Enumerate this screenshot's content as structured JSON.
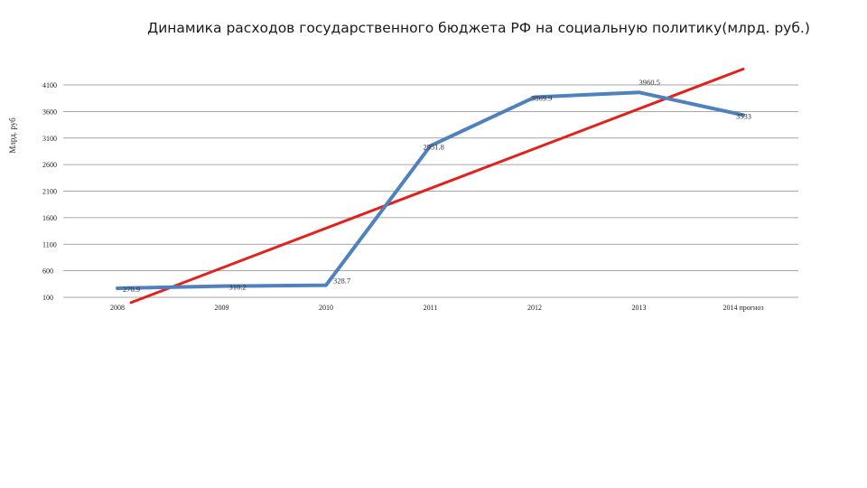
{
  "chart_data": {
    "type": "line",
    "title": "Динамика расходов государственного бюджета РФ на социальную политику(млрд. руб.)",
    "ylabel": "Млрд. руб",
    "xlabel": "",
    "categories": [
      "2008",
      "2009",
      "2010",
      "2011",
      "2012",
      "2013",
      "2014 прогноз"
    ],
    "ylim": [
      100,
      4100
    ],
    "yticks": [
      100,
      600,
      1100,
      1600,
      2100,
      2600,
      3100,
      3600,
      4100
    ],
    "grid": true,
    "series": [
      {
        "values": [
          270.9,
          310.2,
          328.7,
          2951.8,
          3869.9,
          3960.5,
          3533
        ],
        "labels": [
          "270.9",
          "310.2",
          "328.7",
          "2951.8",
          "3869.9",
          "3960.5",
          "3533"
        ],
        "color": "#4f81bd"
      }
    ],
    "trendline": {
      "start": 0,
      "end": 4400,
      "color": "#e3211c"
    }
  }
}
